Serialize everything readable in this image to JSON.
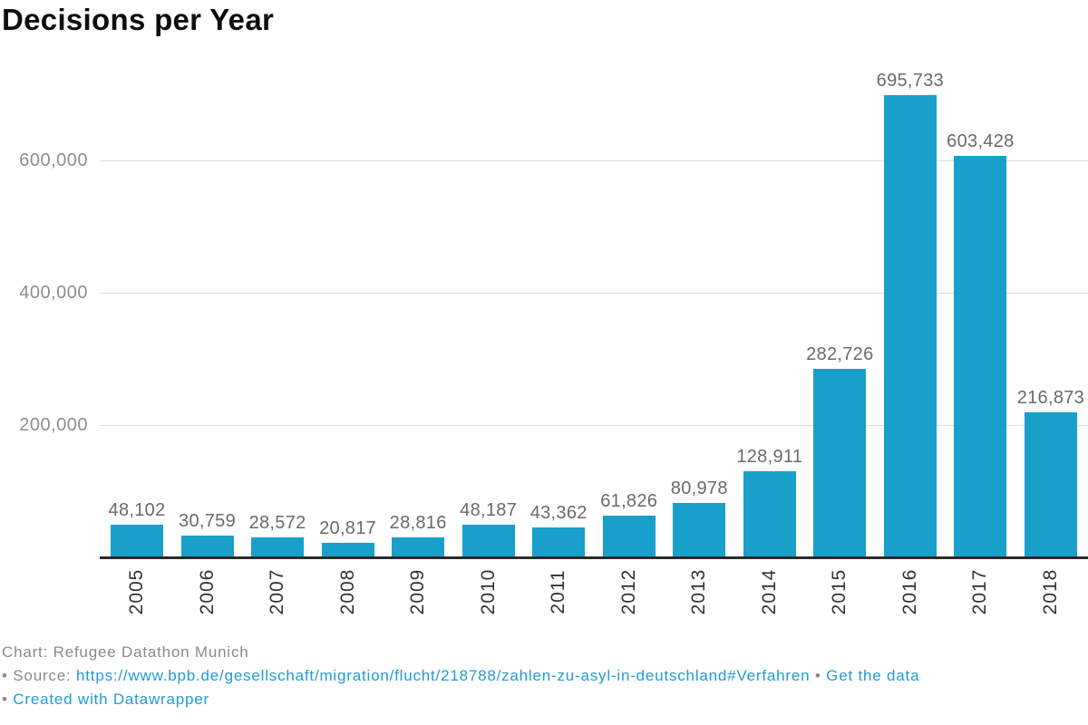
{
  "title": "Decisions per Year",
  "chart_data": {
    "type": "bar",
    "title": "Decisions per Year",
    "categories": [
      "2005",
      "2006",
      "2007",
      "2008",
      "2009",
      "2010",
      "2011",
      "2012",
      "2013",
      "2014",
      "2015",
      "2016",
      "2017",
      "2018"
    ],
    "values": [
      48102,
      30759,
      28572,
      20817,
      28816,
      48187,
      43362,
      61826,
      80978,
      128911,
      282726,
      695733,
      603428,
      216873
    ],
    "value_labels": [
      "48,102",
      "30,759",
      "28,572",
      "20,817",
      "28,816",
      "48,187",
      "43,362",
      "61,826",
      "80,978",
      "128,911",
      "282,726",
      "695,733",
      "603,428",
      "216,873"
    ],
    "xlabel": "",
    "ylabel": "",
    "ylim": [
      0,
      760000
    ],
    "yticks": [
      200000,
      400000,
      600000
    ],
    "ytick_labels": [
      "200,000",
      "400,000",
      "600,000"
    ],
    "grid": "horizontal-only",
    "legend": "none",
    "bar_color": "#18a0cb"
  },
  "footer": {
    "chart_credit": "Chart: Refugee Datathon Munich",
    "bullet": "•",
    "source_label": "Source:",
    "source_url": "https://www.bpb.de/gesellschaft/migration/flucht/218788/zahlen-zu-asyl-in-deutschland#Verfahren",
    "get_data_label": "Get the data",
    "created_label": "Created with Datawrapper"
  },
  "colors": {
    "bar": "#18a0cb",
    "link": "#1e9cd6",
    "grid": "#dddddd",
    "axis": "#2b2b2b",
    "value-label": "#696969",
    "tick-label": "#8e8e8e",
    "year-label": "#333333",
    "credit": "#8a8a8a"
  }
}
